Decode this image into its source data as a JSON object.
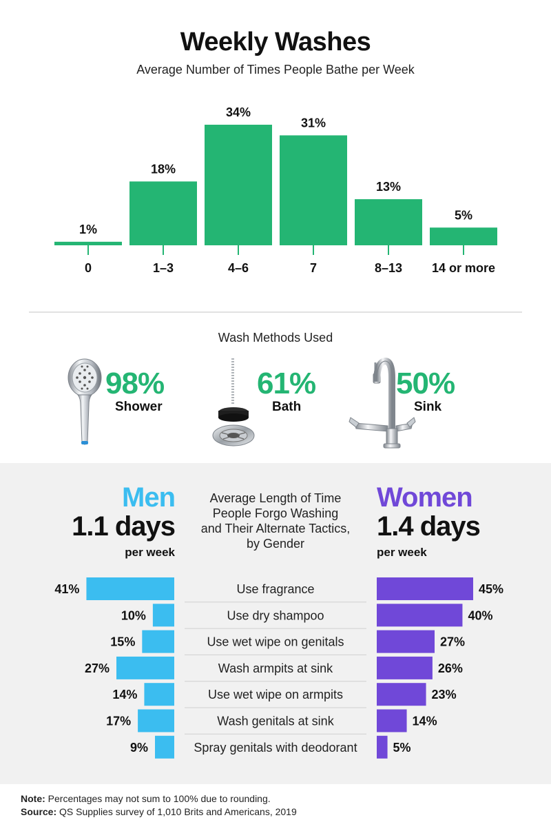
{
  "header": {
    "title": "Weekly Washes",
    "subtitle": "Average Number of Times People Bathe per Week"
  },
  "colors": {
    "green": "#24b573",
    "men": "#3bbdf0",
    "women": "#7048d8",
    "panel_bg": "#f1f1f1"
  },
  "chart_data": [
    {
      "type": "bar",
      "title": "Weekly Washes",
      "subtitle": "Average Number of Times People Bathe per Week",
      "categories": [
        "0",
        "1–3",
        "4–6",
        "7",
        "8–13",
        "14 or more"
      ],
      "values": [
        1,
        18,
        34,
        31,
        13,
        5
      ],
      "value_labels": [
        "1%",
        "18%",
        "34%",
        "31%",
        "13%",
        "5%"
      ],
      "ylim": [
        0,
        34
      ],
      "grid": false
    },
    {
      "type": "bar",
      "orientation": "horizontal-diverging",
      "title": "Average Length of Time People Forgo Washing and Their Alternate Tactics, by Gender",
      "categories": [
        "Use fragrance",
        "Use dry shampoo",
        "Use wet wipe on genitals",
        "Wash armpits at sink",
        "Use wet wipe on armpits",
        "Wash genitals at sink",
        "Spray genitals with deodorant"
      ],
      "series": [
        {
          "name": "Men",
          "values": [
            41,
            10,
            15,
            27,
            14,
            17,
            9
          ],
          "labels": [
            "41%",
            "10%",
            "15%",
            "27%",
            "14%",
            "17%",
            "9%"
          ]
        },
        {
          "name": "Women",
          "values": [
            45,
            40,
            27,
            26,
            23,
            14,
            5
          ],
          "labels": [
            "45%",
            "40%",
            "27%",
            "26%",
            "23%",
            "14%",
            "5%"
          ]
        }
      ],
      "xlim": [
        0,
        45
      ]
    }
  ],
  "methods": {
    "title": "Wash Methods Used",
    "items": [
      {
        "pct": "98%",
        "label": "Shower",
        "icon": "shower-head-icon"
      },
      {
        "pct": "61%",
        "label": "Bath",
        "icon": "bath-plug-icon"
      },
      {
        "pct": "50%",
        "label": "Sink",
        "icon": "faucet-icon"
      }
    ]
  },
  "gender": {
    "center_title": [
      "Average Length of Time",
      "People Forgo Washing",
      "and Their Alternate Tactics,",
      "by Gender"
    ],
    "men": {
      "name": "Men",
      "days": "1.1 days",
      "unit": "per week"
    },
    "women": {
      "name": "Women",
      "days": "1.4 days",
      "unit": "per week"
    }
  },
  "footer": {
    "note_label": "Note:",
    "note_text": " Percentages may not sum to 100% due to rounding.",
    "source_label": "Source:",
    "source_text": " QS Supplies survey of 1,010 Brits and Americans, 2019"
  }
}
